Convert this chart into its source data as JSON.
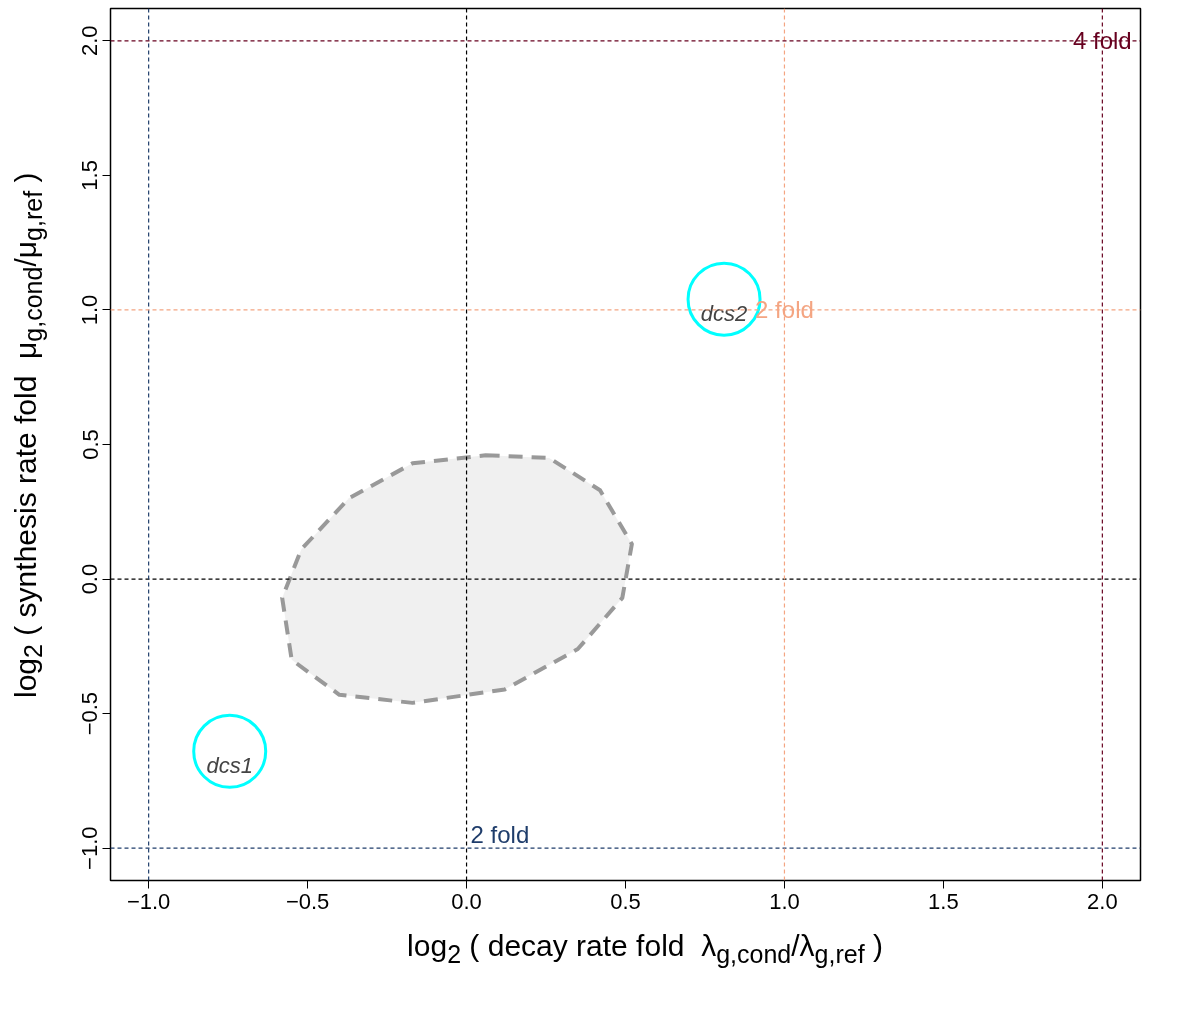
{
  "chart_data": {
    "type": "scatter",
    "xlabel": "log$_{2}$ ( decay rate fold  λ$_{g,cond}$/λ$_{g,ref}$ )",
    "ylabel": "log$_{2}$ ( synthesis rate fold  μ$_{g,cond}$/μ$_{g,ref}$ )",
    "xlim": [
      -1.12,
      2.12
    ],
    "ylim": [
      -1.12,
      2.12
    ],
    "xticks": [
      {
        "value": -1.0,
        "label": "−1.0"
      },
      {
        "value": -0.5,
        "label": "−0.5"
      },
      {
        "value": 0.0,
        "label": "0.0"
      },
      {
        "value": 0.5,
        "label": "0.5"
      },
      {
        "value": 1.0,
        "label": "1.0"
      },
      {
        "value": 1.5,
        "label": "1.5"
      },
      {
        "value": 2.0,
        "label": "2.0"
      }
    ],
    "yticks": [
      {
        "value": -1.0,
        "label": "−1.0"
      },
      {
        "value": -0.5,
        "label": "−0.5"
      },
      {
        "value": 0.0,
        "label": "0.0"
      },
      {
        "value": 0.5,
        "label": "0.5"
      },
      {
        "value": 1.0,
        "label": "1.0"
      },
      {
        "value": 1.5,
        "label": "1.5"
      },
      {
        "value": 2.0,
        "label": "2.0"
      }
    ],
    "grid": false,
    "series": [
      {
        "type": "area",
        "color": "#999999",
        "line_style": "dashed",
        "x": [
          0.06,
          0.26,
          0.42,
          0.52,
          0.49,
          0.35,
          0.12,
          -0.17,
          -0.4,
          -0.55,
          -0.58,
          -0.52,
          -0.37,
          -0.17
        ],
        "values": [
          0.46,
          0.45,
          0.33,
          0.13,
          -0.07,
          -0.26,
          -0.41,
          -0.46,
          -0.43,
          -0.3,
          -0.07,
          0.11,
          0.3,
          0.43
        ]
      },
      {
        "type": "scatter",
        "marker": "circle",
        "color": "#00ffff",
        "x": [
          -0.745,
          0.81
        ],
        "values": [
          -0.64,
          1.04
        ],
        "value_labels": [
          "dcs1",
          "dcs2"
        ]
      }
    ],
    "ref_lines": [
      {
        "axis": "x",
        "value": 0,
        "color": "#000000",
        "line_style": "dashed"
      },
      {
        "axis": "y",
        "value": 0,
        "color": "#000000",
        "line_style": "dashed"
      },
      {
        "axis": "x",
        "value": -1,
        "color": "#1f3d6b",
        "line_style": "dashed"
      },
      {
        "axis": "y",
        "value": -1,
        "color": "#1f3d6b",
        "line_style": "dashed",
        "label": "2 fold"
      },
      {
        "axis": "x",
        "value": 1,
        "color": "#f4a582",
        "line_style": "dashed",
        "label": "2 fold"
      },
      {
        "axis": "y",
        "value": 1,
        "color": "#f4a582",
        "line_style": "dashed"
      },
      {
        "axis": "x",
        "value": 2,
        "color": "#67001f",
        "line_style": "dashed",
        "label": "4 fold"
      },
      {
        "axis": "y",
        "value": 2,
        "color": "#67001f",
        "line_style": "dashed"
      }
    ]
  }
}
